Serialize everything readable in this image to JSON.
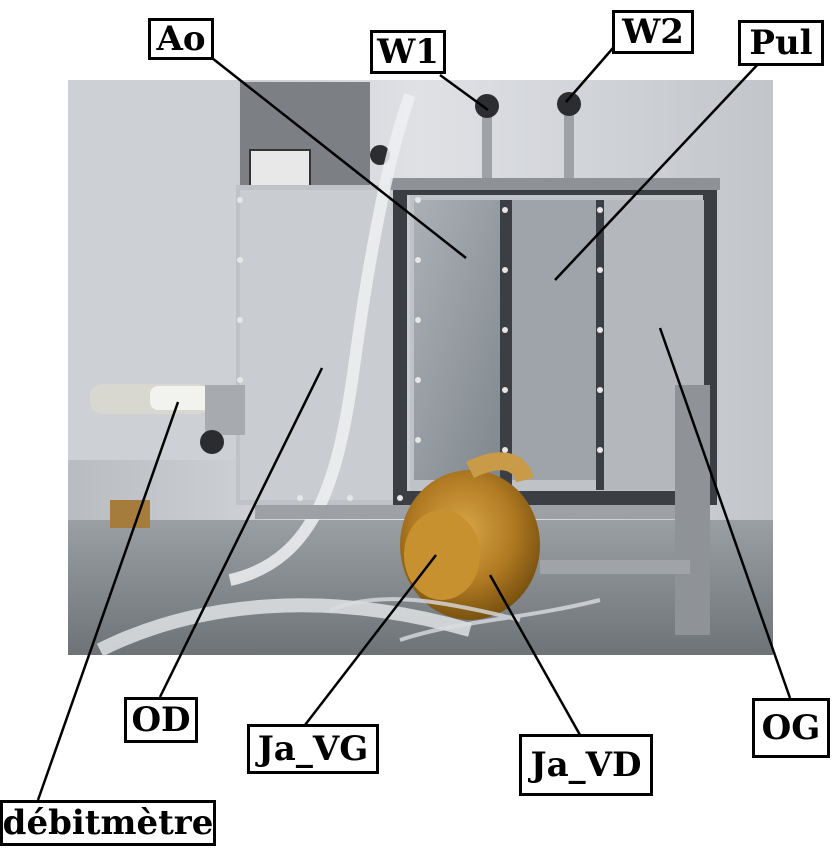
{
  "labels": {
    "ao": "Ao",
    "w1": "W1",
    "w2": "W2",
    "pul": "Pul",
    "od": "OD",
    "ja_vg": "Ja_VG",
    "ja_vd": "Ja_VD",
    "og": "OG",
    "debitmetre": "débitmètre"
  },
  "colors": {
    "background": "#ffffff",
    "label_border": "#000000",
    "leader_line": "#000000",
    "photo_wall": "#d4d6da",
    "photo_floor": "#8a8f93",
    "tank_frame": "#4a4d52",
    "heart": "#b8862f"
  }
}
